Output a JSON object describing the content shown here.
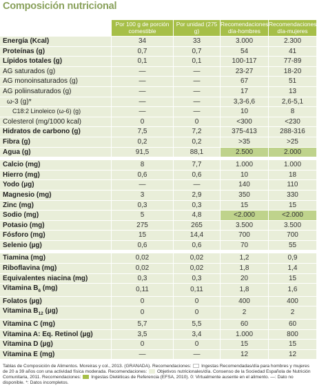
{
  "title": "Composición nutricional",
  "headers": [
    "Por 100 g de porción comestible",
    "Por unidad (275 g)",
    "Recomendaciones día-hombres",
    "Recomendaciones día-mujeres"
  ],
  "groups": [
    [
      {
        "name": "Energía (Kcal)",
        "bold": true,
        "v": [
          "34",
          "33",
          "3.000",
          "2.300"
        ]
      },
      {
        "name": "Proteínas (g)",
        "bold": true,
        "v": [
          "0,7",
          "0,7",
          "54",
          "41"
        ]
      },
      {
        "name": "Lípidos totales (g)",
        "bold": true,
        "v": [
          "0,1",
          "0,1",
          "100-117",
          "77-89"
        ]
      },
      {
        "name": "AG saturados (g)",
        "v": [
          "—",
          "—",
          "23-27",
          "18-20"
        ]
      },
      {
        "name": "AG monoinsaturados (g)",
        "v": [
          "—",
          "—",
          "67",
          "51"
        ]
      },
      {
        "name": "AG poliinsaturados (g)",
        "v": [
          "—",
          "—",
          "17",
          "13"
        ]
      },
      {
        "name": "ω-3 (g)*",
        "indent": 1,
        "v": [
          "—",
          "—",
          "3,3-6,6",
          "2,6-5,1"
        ]
      },
      {
        "name": "C18:2 Linoleico (ω-6) (g)",
        "indent": 2,
        "v": [
          "—",
          "—",
          "10",
          "8"
        ]
      },
      {
        "name": "Colesterol (mg/1000 kcal)",
        "v": [
          "0",
          "0",
          "<300",
          "<230"
        ]
      },
      {
        "name": "Hidratos de carbono (g)",
        "bold": true,
        "v": [
          "7,5",
          "7,2",
          "375-413",
          "288-316"
        ]
      },
      {
        "name": "Fibra (g)",
        "bold": true,
        "v": [
          "0,2",
          "0,2",
          ">35",
          ">25"
        ]
      },
      {
        "name": "Agua (g)",
        "bold": true,
        "v": [
          "91,5",
          "88,1",
          "2.500",
          "2.000"
        ],
        "hl": true
      }
    ],
    [
      {
        "name": "Calcio (mg)",
        "bold": true,
        "v": [
          "8",
          "7,7",
          "1.000",
          "1.000"
        ]
      },
      {
        "name": "Hierro (mg)",
        "bold": true,
        "v": [
          "0,6",
          "0,6",
          "10",
          "18"
        ]
      },
      {
        "name": "Yodo (µg)",
        "bold": true,
        "v": [
          "—",
          "—",
          "140",
          "110"
        ]
      },
      {
        "name": "Magnesio (mg)",
        "bold": true,
        "v": [
          "3",
          "2,9",
          "350",
          "330"
        ]
      },
      {
        "name": "Zinc (mg)",
        "bold": true,
        "v": [
          "0,3",
          "0,3",
          "15",
          "15"
        ]
      },
      {
        "name": "Sodio (mg)",
        "bold": true,
        "v": [
          "5",
          "4,8",
          "<2.000",
          "<2.000"
        ],
        "hl": true
      },
      {
        "name": "Potasio (mg)",
        "bold": true,
        "v": [
          "275",
          "265",
          "3.500",
          "3.500"
        ]
      },
      {
        "name": "Fósforo (mg)",
        "bold": true,
        "v": [
          "15",
          "14,4",
          "700",
          "700"
        ]
      },
      {
        "name": "Selenio (µg)",
        "bold": true,
        "v": [
          "0,6",
          "0,6",
          "70",
          "55"
        ]
      }
    ],
    [
      {
        "name": "Tiamina (mg)",
        "bold": true,
        "v": [
          "0,02",
          "0,02",
          "1,2",
          "0,9"
        ]
      },
      {
        "name": "Riboflavina (mg)",
        "bold": true,
        "v": [
          "0,02",
          "0,02",
          "1,8",
          "1,4"
        ]
      },
      {
        "name": "Equivalentes niacina (mg)",
        "bold": true,
        "v": [
          "0,3",
          "0,3",
          "20",
          "15"
        ]
      },
      {
        "name": "Vitamina B",
        "sub": "6",
        "suffix": " (mg)",
        "bold": true,
        "v": [
          "0,11",
          "0,11",
          "1,8",
          "1,6"
        ]
      },
      {
        "name": "Folatos (µg)",
        "bold": true,
        "v": [
          "0",
          "0",
          "400",
          "400"
        ]
      },
      {
        "name": "Vitamina B",
        "sub": "12",
        "suffix": " (µg)",
        "bold": true,
        "v": [
          "0",
          "0",
          "2",
          "2"
        ]
      },
      {
        "name": "Vitamina C (mg)",
        "bold": true,
        "v": [
          "5,7",
          "5,5",
          "60",
          "60"
        ]
      },
      {
        "name": "Vitamina A: Eq. Retinol (µg)",
        "bold": true,
        "v": [
          "3,5",
          "3,4",
          "1.000",
          "800"
        ]
      },
      {
        "name": "Vitamina D (µg)",
        "bold": true,
        "v": [
          "0",
          "0",
          "15",
          "15"
        ]
      },
      {
        "name": "Vitamina E (mg)",
        "bold": true,
        "v": [
          "—",
          "—",
          "12",
          "12"
        ]
      }
    ]
  ],
  "footnote": {
    "part1": "Tablas de Composición de Alimentos. Moreiras y col., 2013. (GRANADA). Recomendaciones:",
    "legend1": "Ingestas Recomendadas/día para hombres y mujeres de 20 a 39 años con una actividad física moderada. Recomendaciones:",
    "legend2": "Objetivos nutricionales/día. Consenso de la Sociedad Española de Nutrición Comunitaria, 2011. Recomendaciones:",
    "legend3": "Ingestas Dietéticas de Referencia (EFSA, 2010). 0: Virtualmente ausente en el alimento. —: Dato no disponible. *: Datos incompletos."
  }
}
